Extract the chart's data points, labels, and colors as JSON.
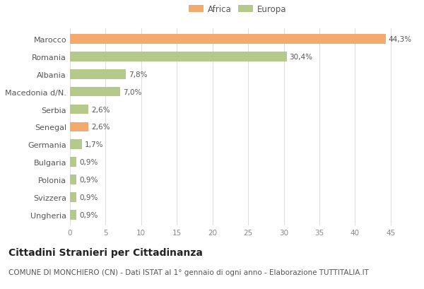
{
  "categories": [
    "Marocco",
    "Romania",
    "Albania",
    "Macedonia d/N.",
    "Serbia",
    "Senegal",
    "Germania",
    "Bulgaria",
    "Polonia",
    "Svizzera",
    "Ungheria"
  ],
  "values": [
    44.3,
    30.4,
    7.8,
    7.0,
    2.6,
    2.6,
    1.7,
    0.9,
    0.9,
    0.9,
    0.9
  ],
  "labels": [
    "44,3%",
    "30,4%",
    "7,8%",
    "7,0%",
    "2,6%",
    "2,6%",
    "1,7%",
    "0,9%",
    "0,9%",
    "0,9%",
    "0,9%"
  ],
  "colors": [
    "#F4A96D",
    "#B5C98A",
    "#B5C98A",
    "#B5C98A",
    "#B5C98A",
    "#F4A96D",
    "#B5C98A",
    "#B5C98A",
    "#B5C98A",
    "#B5C98A",
    "#B5C98A"
  ],
  "africa_color": "#F4A96D",
  "europa_color": "#B5C98A",
  "background_color": "#ffffff",
  "xlim": [
    0,
    47
  ],
  "xticks": [
    0,
    5,
    10,
    15,
    20,
    25,
    30,
    35,
    40,
    45
  ],
  "title": "Cittadini Stranieri per Cittadinanza",
  "subtitle": "COMUNE DI MONCHIERO (CN) - Dati ISTAT al 1° gennaio di ogni anno - Elaborazione TUTTITALIA.IT",
  "title_fontsize": 10,
  "subtitle_fontsize": 7.5,
  "bar_height": 0.55,
  "grid_color": "#dddddd"
}
